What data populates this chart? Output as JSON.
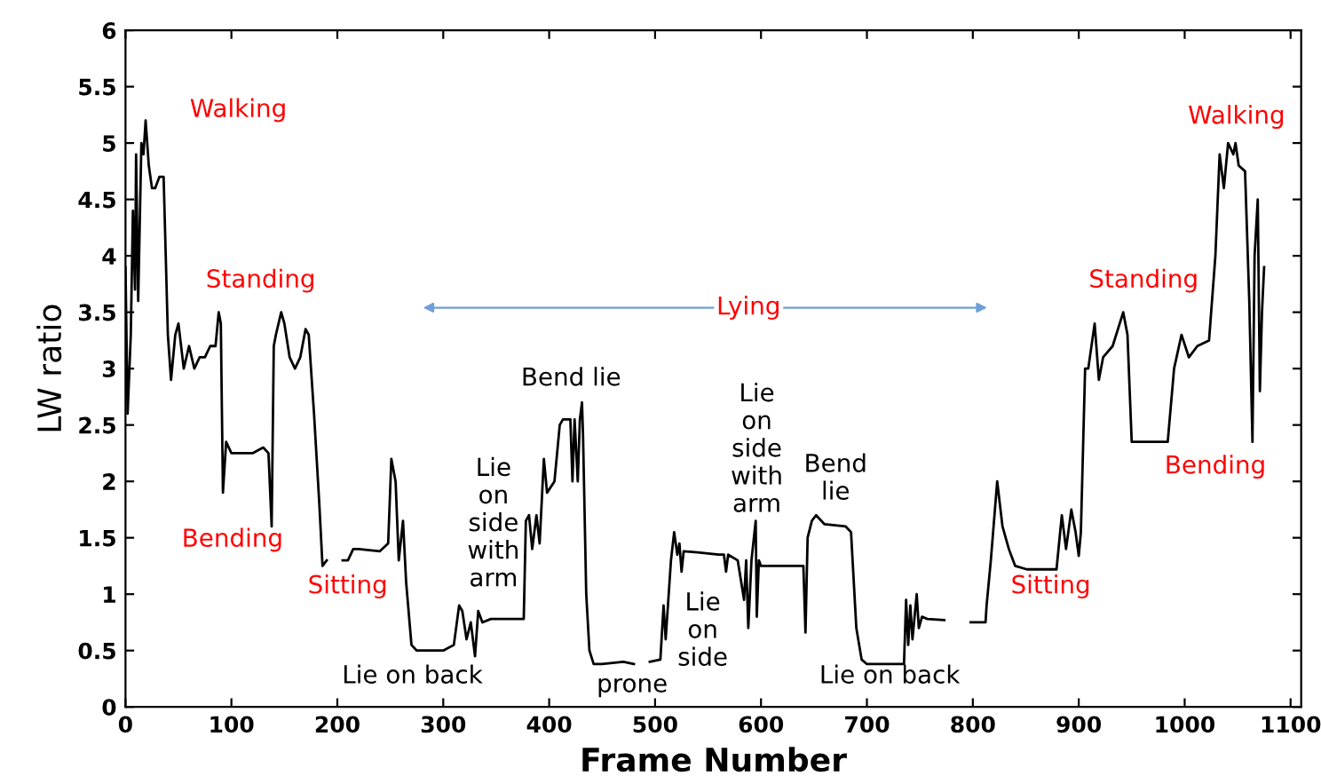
{
  "chart_data": {
    "type": "line",
    "xlabel": "Frame Number",
    "ylabel": "LW ratio",
    "xlim": [
      0,
      1110
    ],
    "xticks": [
      0,
      100,
      200,
      300,
      400,
      500,
      600,
      700,
      800,
      900,
      1000,
      1100
    ],
    "ylim": [
      0,
      6
    ],
    "yticks": [
      0,
      0.5,
      1,
      1.5,
      2,
      2.5,
      3,
      3.5,
      4,
      4.5,
      5,
      5.5,
      6
    ],
    "grid": false,
    "legend": false,
    "marker": "none",
    "line_style": "solid",
    "series": [
      {
        "color": "#000000",
        "x": [
          0,
          2,
          5,
          7,
          9,
          10,
          12,
          15,
          17,
          19,
          22,
          25,
          28,
          32,
          36,
          40,
          43,
          47,
          50,
          55,
          60,
          65,
          70,
          75,
          80,
          85,
          88,
          90,
          92,
          95,
          100,
          120,
          130,
          135,
          138,
          140,
          142,
          147,
          150,
          155,
          160,
          165,
          170,
          173,
          178,
          183,
          186,
          190,
          198,
          205,
          210,
          215,
          220,
          240,
          248,
          251,
          255,
          258,
          262,
          265,
          270,
          275,
          300,
          310,
          315,
          318,
          322,
          326,
          330,
          333,
          337,
          345,
          376,
          378,
          381,
          384,
          388,
          391,
          395,
          398,
          405,
          410,
          413,
          420,
          422,
          424,
          427,
          429,
          431,
          432,
          435,
          438,
          442,
          450,
          470,
          480,
          488,
          495,
          505,
          508,
          510,
          515,
          518,
          521,
          523,
          525,
          527,
          540,
          560,
          565,
          567,
          569,
          578,
          584,
          586,
          588,
          591,
          595,
          596,
          598,
          600,
          630,
          640,
          642,
          644,
          648,
          652,
          660,
          680,
          685,
          690,
          695,
          700,
          720,
          735,
          737,
          739,
          741,
          743,
          747,
          749,
          752,
          757,
          773,
          785,
          798,
          812,
          813,
          817,
          823,
          828,
          834,
          840,
          851,
          868,
          879,
          884,
          888,
          893,
          897,
          900,
          902,
          906,
          909,
          915,
          919,
          923,
          932,
          942,
          946,
          950,
          957,
          976,
          984,
          990,
          997,
          1004,
          1012,
          1023,
          1029,
          1033,
          1037,
          1041,
          1046,
          1048,
          1051,
          1057,
          1061,
          1064,
          1066,
          1069,
          1071,
          1073,
          1075
        ],
        "values": [
          3.9,
          2.6,
          3.3,
          4.4,
          3.7,
          4.9,
          3.6,
          5.0,
          4.9,
          5.2,
          4.8,
          4.6,
          4.6,
          4.7,
          4.7,
          3.3,
          2.9,
          3.3,
          3.4,
          3.0,
          3.2,
          3.0,
          3.1,
          3.1,
          3.2,
          3.2,
          3.5,
          3.4,
          1.9,
          2.35,
          2.25,
          2.25,
          2.3,
          2.25,
          1.6,
          3.2,
          3.3,
          3.5,
          3.4,
          3.1,
          3.0,
          3.1,
          3.35,
          3.3,
          2.6,
          1.8,
          1.25,
          1.3,
          null,
          1.3,
          1.3,
          1.4,
          1.4,
          1.38,
          1.45,
          2.2,
          2.0,
          1.3,
          1.65,
          1.1,
          0.55,
          0.5,
          0.5,
          0.55,
          0.9,
          0.85,
          0.6,
          0.75,
          0.45,
          0.85,
          0.75,
          0.78,
          0.78,
          1.65,
          1.7,
          1.4,
          1.7,
          1.45,
          2.2,
          1.9,
          2.0,
          2.5,
          2.55,
          2.55,
          2.0,
          2.55,
          2.0,
          2.55,
          2.7,
          2.4,
          1.0,
          0.5,
          0.38,
          0.38,
          0.4,
          0.38,
          null,
          0.4,
          0.42,
          0.9,
          0.6,
          1.3,
          1.55,
          1.35,
          1.45,
          1.2,
          1.38,
          1.37,
          1.35,
          1.35,
          1.2,
          1.35,
          1.3,
          0.95,
          1.3,
          0.7,
          1.3,
          1.65,
          0.8,
          1.3,
          1.25,
          1.25,
          1.25,
          0.66,
          1.5,
          1.65,
          1.7,
          1.62,
          1.6,
          1.55,
          0.7,
          0.42,
          0.38,
          0.38,
          0.38,
          0.95,
          0.55,
          0.9,
          0.6,
          1.0,
          0.7,
          0.8,
          0.78,
          0.77,
          null,
          0.75,
          0.75,
          0.9,
          1.3,
          2.0,
          1.6,
          1.4,
          1.25,
          1.22,
          1.22,
          1.22,
          1.7,
          1.4,
          1.75,
          1.55,
          1.34,
          1.55,
          3.0,
          3.0,
          3.4,
          2.9,
          3.1,
          3.2,
          3.5,
          3.3,
          2.35,
          2.35,
          2.35,
          2.35,
          3.0,
          3.3,
          3.1,
          3.2,
          3.25,
          4.0,
          4.9,
          4.6,
          5.0,
          4.9,
          5.0,
          4.8,
          4.75,
          3.6,
          2.35,
          4.0,
          4.5,
          2.8,
          3.5,
          3.9
        ]
      }
    ],
    "annotations": [
      "Walking",
      "Standing",
      "Bending",
      "Sitting",
      "Lie on back",
      "Lie\non\nside\nwith\narm",
      "Bend lie",
      "prone",
      "Lie\non\nside",
      "Lie\non\nside\nwith\narm",
      "Bend\nlie",
      "Lie on back",
      "Sitting",
      "Standing",
      "Bending",
      "Walking",
      "Lying"
    ]
  }
}
